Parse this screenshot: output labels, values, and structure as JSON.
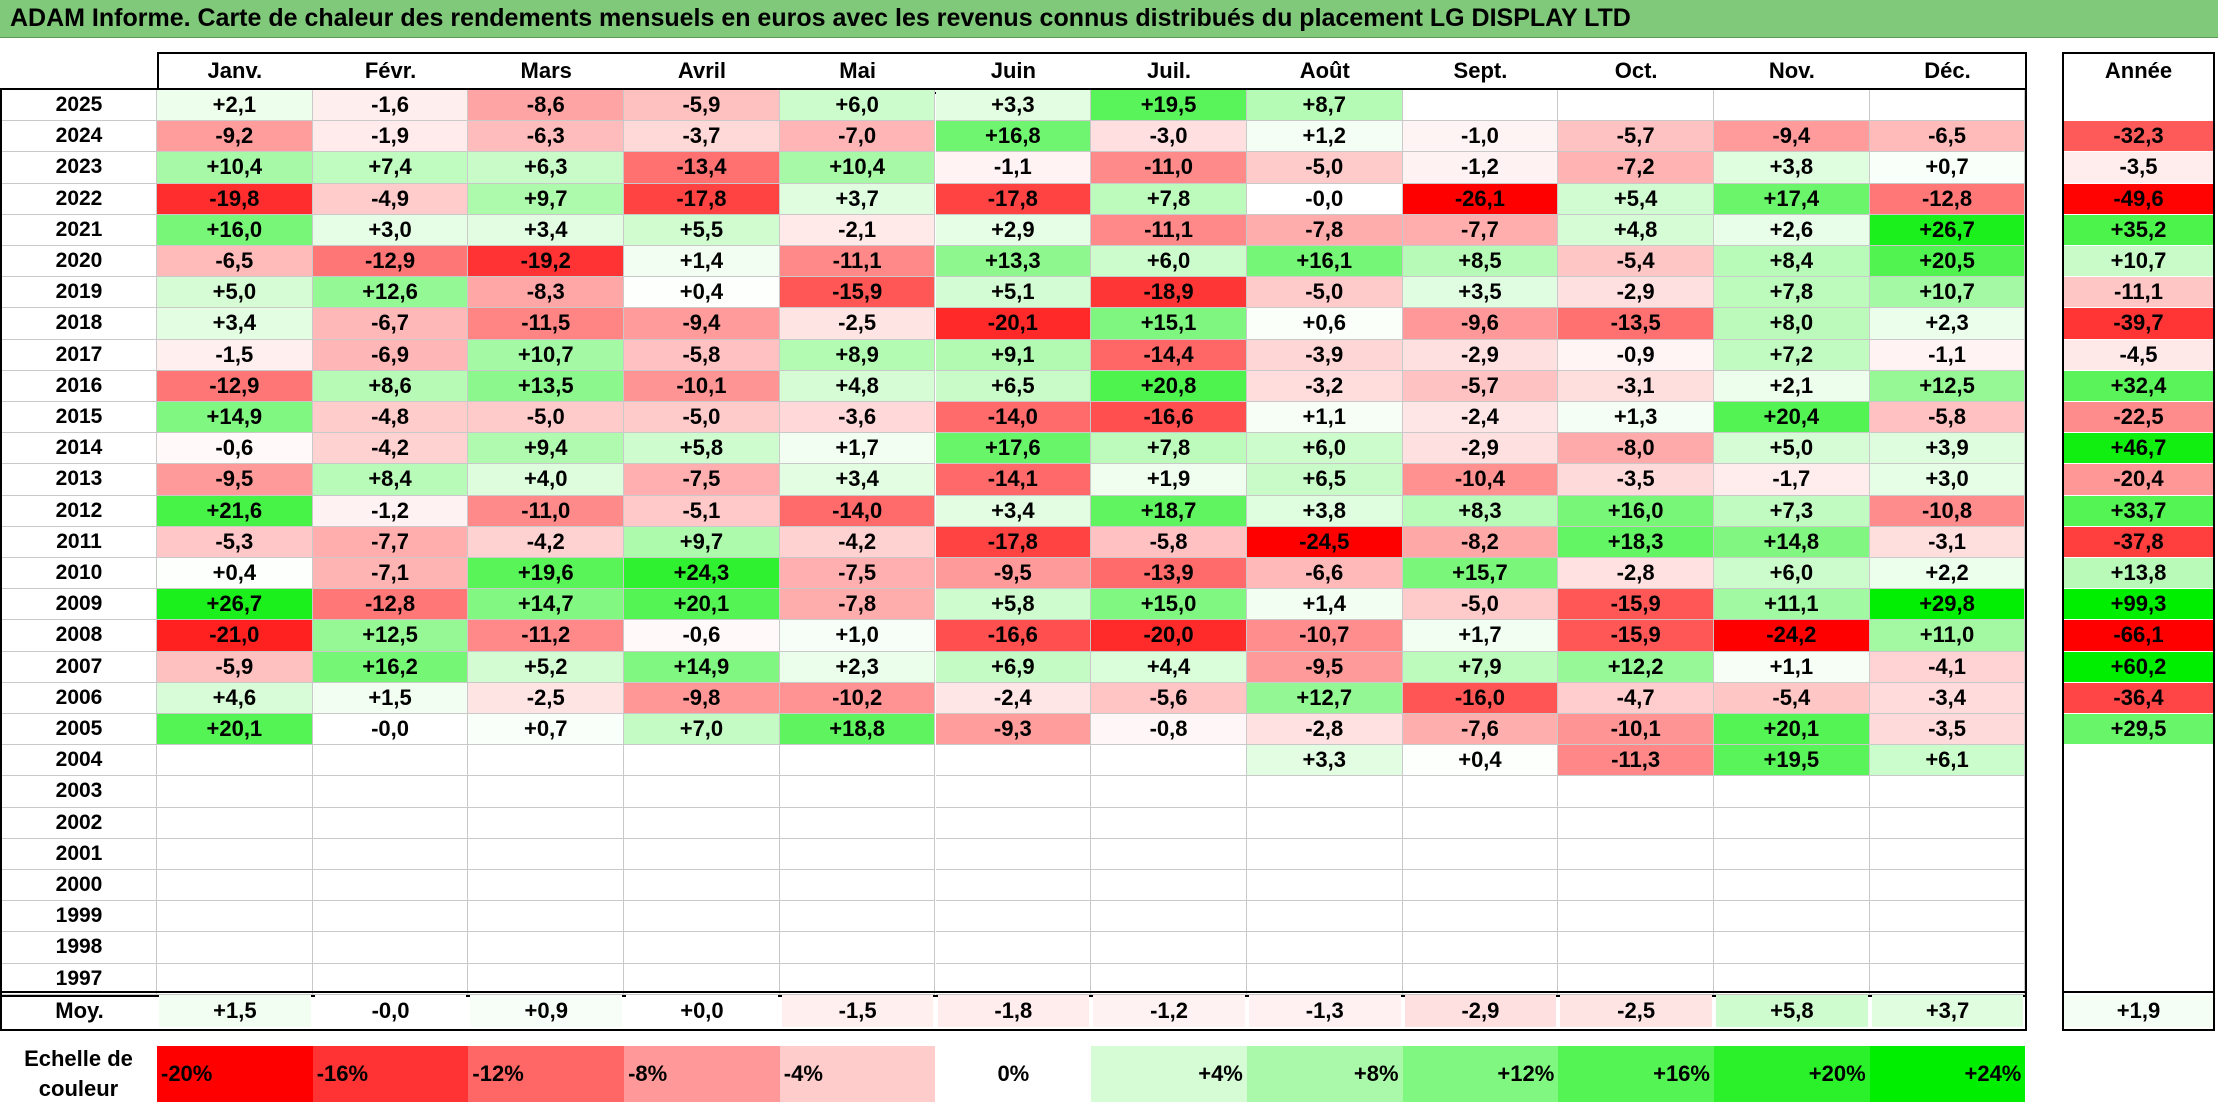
{
  "title": "ADAM Informe. Carte de chaleur des rendements mensuels en euros avec les revenus connus distribués du placement LG DISPLAY LTD",
  "colors": {
    "title_bg": "#80c87a",
    "neg_max": "#ff0000",
    "zero": "#ffffff",
    "pos_max": "#00ee00"
  },
  "chart_data": {
    "type": "heatmap",
    "title": "ADAM Informe. Carte de chaleur des rendements mensuels en euros avec les revenus connus distribués du placement LG DISPLAY LTD",
    "columns": [
      "Janv.",
      "Févr.",
      "Mars",
      "Avril",
      "Mai",
      "Juin",
      "Juil.",
      "Août",
      "Sept.",
      "Oct.",
      "Nov.",
      "Déc."
    ],
    "year_header": "Année",
    "rows": [
      {
        "year": "2025",
        "values": [
          "+2,1",
          "-1,6",
          "-8,6",
          "-5,9",
          "+6,0",
          "+3,3",
          "+19,5",
          "+8,7",
          "",
          "",
          "",
          ""
        ],
        "annual": ""
      },
      {
        "year": "2024",
        "values": [
          "-9,2",
          "-1,9",
          "-6,3",
          "-3,7",
          "-7,0",
          "+16,8",
          "-3,0",
          "+1,2",
          "-1,0",
          "-5,7",
          "-9,4",
          "-6,5"
        ],
        "annual": "-32,3"
      },
      {
        "year": "2023",
        "values": [
          "+10,4",
          "+7,4",
          "+6,3",
          "-13,4",
          "+10,4",
          "-1,1",
          "-11,0",
          "-5,0",
          "-1,2",
          "-7,2",
          "+3,8",
          "+0,7"
        ],
        "annual": "-3,5"
      },
      {
        "year": "2022",
        "values": [
          "-19,8",
          "-4,9",
          "+9,7",
          "-17,8",
          "+3,7",
          "-17,8",
          "+7,8",
          "-0,0",
          "-26,1",
          "+5,4",
          "+17,4",
          "-12,8"
        ],
        "annual": "-49,6"
      },
      {
        "year": "2021",
        "values": [
          "+16,0",
          "+3,0",
          "+3,4",
          "+5,5",
          "-2,1",
          "+2,9",
          "-11,1",
          "-7,8",
          "-7,7",
          "+4,8",
          "+2,6",
          "+26,7"
        ],
        "annual": "+35,2"
      },
      {
        "year": "2020",
        "values": [
          "-6,5",
          "-12,9",
          "-19,2",
          "+1,4",
          "-11,1",
          "+13,3",
          "+6,0",
          "+16,1",
          "+8,5",
          "-5,4",
          "+8,4",
          "+20,5"
        ],
        "annual": "+10,7"
      },
      {
        "year": "2019",
        "values": [
          "+5,0",
          "+12,6",
          "-8,3",
          "+0,4",
          "-15,9",
          "+5,1",
          "-18,9",
          "-5,0",
          "+3,5",
          "-2,9",
          "+7,8",
          "+10,7"
        ],
        "annual": "-11,1"
      },
      {
        "year": "2018",
        "values": [
          "+3,4",
          "-6,7",
          "-11,5",
          "-9,4",
          "-2,5",
          "-20,1",
          "+15,1",
          "+0,6",
          "-9,6",
          "-13,5",
          "+8,0",
          "+2,3"
        ],
        "annual": "-39,7"
      },
      {
        "year": "2017",
        "values": [
          "-1,5",
          "-6,9",
          "+10,7",
          "-5,8",
          "+8,9",
          "+9,1",
          "-14,4",
          "-3,9",
          "-2,9",
          "-0,9",
          "+7,2",
          "-1,1"
        ],
        "annual": "-4,5"
      },
      {
        "year": "2016",
        "values": [
          "-12,9",
          "+8,6",
          "+13,5",
          "-10,1",
          "+4,8",
          "+6,5",
          "+20,8",
          "-3,2",
          "-5,7",
          "-3,1",
          "+2,1",
          "+12,5"
        ],
        "annual": "+32,4"
      },
      {
        "year": "2015",
        "values": [
          "+14,9",
          "-4,8",
          "-5,0",
          "-5,0",
          "-3,6",
          "-14,0",
          "-16,6",
          "+1,1",
          "-2,4",
          "+1,3",
          "+20,4",
          "-5,8"
        ],
        "annual": "-22,5"
      },
      {
        "year": "2014",
        "values": [
          "-0,6",
          "-4,2",
          "+9,4",
          "+5,8",
          "+1,7",
          "+17,6",
          "+7,8",
          "+6,0",
          "-2,9",
          "-8,0",
          "+5,0",
          "+3,9"
        ],
        "annual": "+46,7"
      },
      {
        "year": "2013",
        "values": [
          "-9,5",
          "+8,4",
          "+4,0",
          "-7,5",
          "+3,4",
          "-14,1",
          "+1,9",
          "+6,5",
          "-10,4",
          "-3,5",
          "-1,7",
          "+3,0"
        ],
        "annual": "-20,4"
      },
      {
        "year": "2012",
        "values": [
          "+21,6",
          "-1,2",
          "-11,0",
          "-5,1",
          "-14,0",
          "+3,4",
          "+18,7",
          "+3,8",
          "+8,3",
          "+16,0",
          "+7,3",
          "-10,8"
        ],
        "annual": "+33,7"
      },
      {
        "year": "2011",
        "values": [
          "-5,3",
          "-7,7",
          "-4,2",
          "+9,7",
          "-4,2",
          "-17,8",
          "-5,8",
          "-24,5",
          "-8,2",
          "+18,3",
          "+14,8",
          "-3,1"
        ],
        "annual": "-37,8"
      },
      {
        "year": "2010",
        "values": [
          "+0,4",
          "-7,1",
          "+19,6",
          "+24,3",
          "-7,5",
          "-9,5",
          "-13,9",
          "-6,6",
          "+15,7",
          "-2,8",
          "+6,0",
          "+2,2"
        ],
        "annual": "+13,8"
      },
      {
        "year": "2009",
        "values": [
          "+26,7",
          "-12,8",
          "+14,7",
          "+20,1",
          "-7,8",
          "+5,8",
          "+15,0",
          "+1,4",
          "-5,0",
          "-15,9",
          "+11,1",
          "+29,8"
        ],
        "annual": "+99,3"
      },
      {
        "year": "2008",
        "values": [
          "-21,0",
          "+12,5",
          "-11,2",
          "-0,6",
          "+1,0",
          "-16,6",
          "-20,0",
          "-10,7",
          "+1,7",
          "-15,9",
          "-24,2",
          "+11,0"
        ],
        "annual": "-66,1"
      },
      {
        "year": "2007",
        "values": [
          "-5,9",
          "+16,2",
          "+5,2",
          "+14,9",
          "+2,3",
          "+6,9",
          "+4,4",
          "-9,5",
          "+7,9",
          "+12,2",
          "+1,1",
          "-4,1"
        ],
        "annual": "+60,2"
      },
      {
        "year": "2006",
        "values": [
          "+4,6",
          "+1,5",
          "-2,5",
          "-9,8",
          "-10,2",
          "-2,4",
          "-5,6",
          "+12,7",
          "-16,0",
          "-4,7",
          "-5,4",
          "-3,4"
        ],
        "annual": "-36,4"
      },
      {
        "year": "2005",
        "values": [
          "+20,1",
          "-0,0",
          "+0,7",
          "+7,0",
          "+18,8",
          "-9,3",
          "-0,8",
          "-2,8",
          "-7,6",
          "-10,1",
          "+20,1",
          "-3,5"
        ],
        "annual": "+29,5"
      },
      {
        "year": "2004",
        "values": [
          "",
          "",
          "",
          "",
          "",
          "",
          "",
          "+3,3",
          "+0,4",
          "-11,3",
          "+19,5",
          "+6,1"
        ],
        "annual": ""
      },
      {
        "year": "2003",
        "values": [
          "",
          "",
          "",
          "",
          "",
          "",
          "",
          "",
          "",
          "",
          "",
          ""
        ],
        "annual": ""
      },
      {
        "year": "2002",
        "values": [
          "",
          "",
          "",
          "",
          "",
          "",
          "",
          "",
          "",
          "",
          "",
          ""
        ],
        "annual": ""
      },
      {
        "year": "2001",
        "values": [
          "",
          "",
          "",
          "",
          "",
          "",
          "",
          "",
          "",
          "",
          "",
          ""
        ],
        "annual": ""
      },
      {
        "year": "2000",
        "values": [
          "",
          "",
          "",
          "",
          "",
          "",
          "",
          "",
          "",
          "",
          "",
          ""
        ],
        "annual": ""
      },
      {
        "year": "1999",
        "values": [
          "",
          "",
          "",
          "",
          "",
          "",
          "",
          "",
          "",
          "",
          "",
          ""
        ],
        "annual": ""
      },
      {
        "year": "1998",
        "values": [
          "",
          "",
          "",
          "",
          "",
          "",
          "",
          "",
          "",
          "",
          "",
          ""
        ],
        "annual": ""
      },
      {
        "year": "1997",
        "values": [
          "",
          "",
          "",
          "",
          "",
          "",
          "",
          "",
          "",
          "",
          "",
          ""
        ],
        "annual": ""
      }
    ],
    "average": {
      "label": "Moy.",
      "values": [
        "+1,5",
        "-0,0",
        "+0,9",
        "+0,0",
        "-1,5",
        "-1,8",
        "-1,2",
        "-1,3",
        "-2,9",
        "-2,5",
        "+5,8",
        "+3,7"
      ],
      "annual": "+1,9"
    },
    "scale": {
      "label_line1": "Echelle de",
      "label_line2": "couleur",
      "steps": [
        {
          "label": "-20%",
          "value": -20
        },
        {
          "label": "-16%",
          "value": -16
        },
        {
          "label": "-12%",
          "value": -12
        },
        {
          "label": "-8%",
          "value": -8
        },
        {
          "label": "-4%",
          "value": -4
        },
        {
          "label": "0%",
          "value": 0
        },
        {
          "label": "+4%",
          "value": 4
        },
        {
          "label": "+8%",
          "value": 8
        },
        {
          "label": "+12%",
          "value": 12
        },
        {
          "label": "+16%",
          "value": 16
        },
        {
          "label": "+20%",
          "value": 20
        },
        {
          "label": "+24%",
          "value": 24
        }
      ]
    }
  }
}
